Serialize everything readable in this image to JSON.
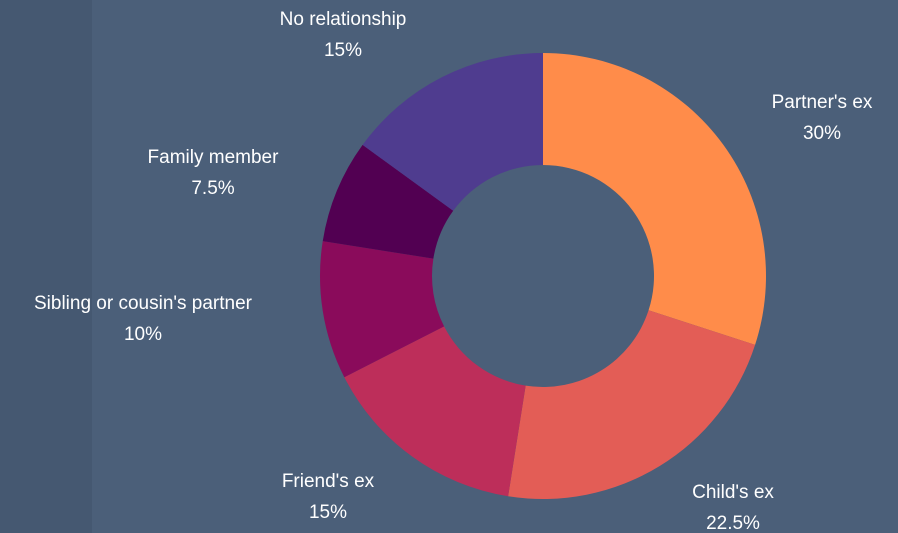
{
  "chart_data": {
    "type": "donut",
    "categories": [
      "Partner's ex",
      "Child's ex",
      "Friend's ex",
      "Sibling or cousin's partner",
      "Family member",
      "No relationship"
    ],
    "values": [
      30,
      22.5,
      15,
      10,
      7.5,
      15
    ],
    "value_labels": [
      "30%",
      "22.5%",
      "15%",
      "10%",
      "7.5%",
      "15%"
    ],
    "colors": [
      "#ff8c4a",
      "#e35d56",
      "#bd2e5a",
      "#8a0b5b",
      "#520052",
      "#4f3c8f"
    ]
  }
}
